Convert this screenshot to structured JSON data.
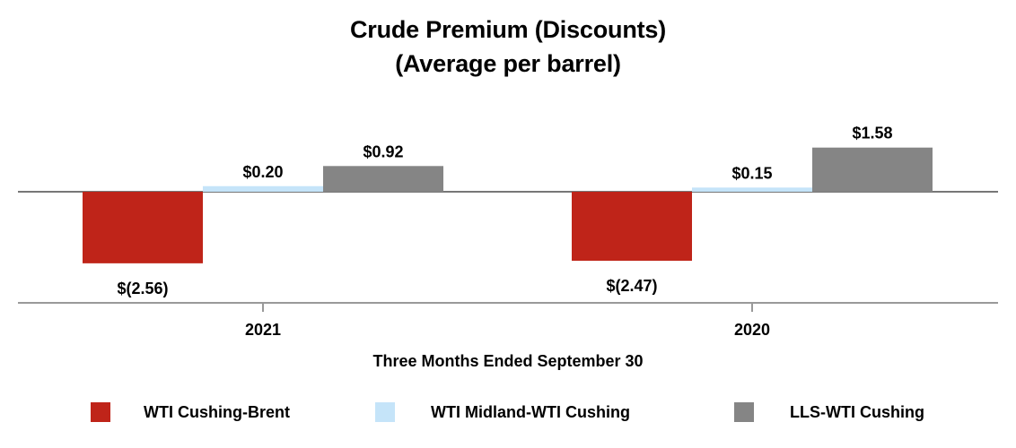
{
  "chart_data": {
    "type": "bar",
    "title": "Crude Premium (Discounts)",
    "subtitle": "(Average per barrel)",
    "xlabel": "Three Months Ended September 30",
    "ylabel": "",
    "categories": [
      "2021",
      "2020"
    ],
    "series": [
      {
        "name": "WTI Cushing-Brent",
        "color": "#bf2419",
        "values": [
          -2.56,
          -2.47
        ],
        "labels": [
          "$(2.56)",
          "$(2.47)"
        ]
      },
      {
        "name": "WTI Midland-WTI Cushing",
        "color": "#c5e4f9",
        "values": [
          0.2,
          0.15
        ],
        "labels": [
          "$0.20",
          "$0.15"
        ]
      },
      {
        "name": "LLS-WTI Cushing",
        "color": "#858585",
        "values": [
          0.92,
          1.58
        ],
        "labels": [
          "$0.92",
          "$1.58"
        ]
      }
    ],
    "ylim": [
      -3.9,
      2.5
    ],
    "grid": false,
    "legend": "bottom"
  }
}
